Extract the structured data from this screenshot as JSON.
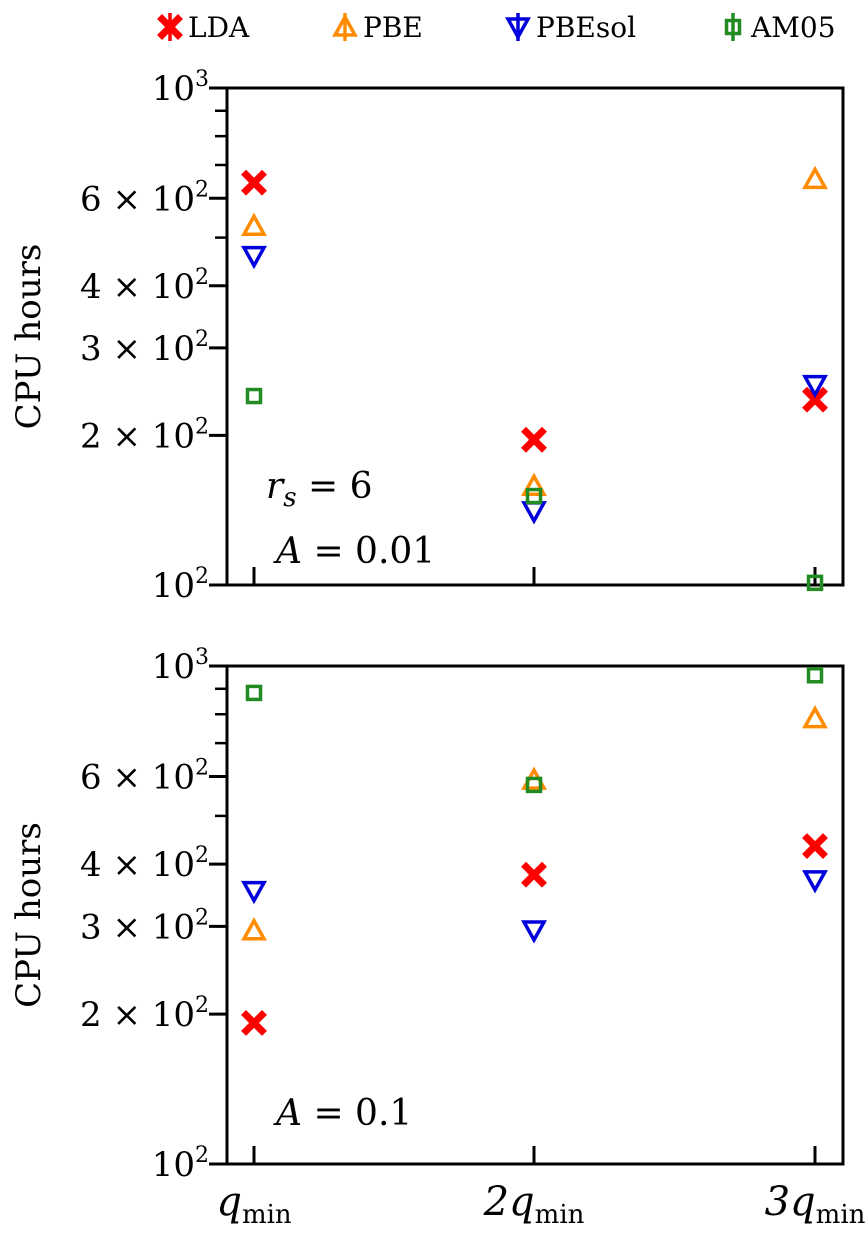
{
  "legend": [
    {
      "name": "LDA",
      "color": "#ff0000",
      "marker": "x-filled"
    },
    {
      "name": "PBE",
      "color": "#ff8c00",
      "marker": "triangle-up"
    },
    {
      "name": "PBEsol",
      "color": "#0000dd",
      "marker": "triangle-down"
    },
    {
      "name": "AM05",
      "color": "#228b22",
      "marker": "square"
    }
  ],
  "x_tick_labels": [
    {
      "main": "q",
      "sub": "min"
    },
    {
      "main": "2q",
      "sub": "min"
    },
    {
      "main": "3q",
      "sub": "min"
    }
  ],
  "chart_data": [
    {
      "type": "scatter",
      "ylabel": "CPU hours",
      "yscale": "log",
      "ylim": [
        100,
        1000
      ],
      "yticks": [
        {
          "value": 100,
          "label": "10",
          "sup": "2"
        },
        {
          "value": 200,
          "label": "2 × 10",
          "sup": "2"
        },
        {
          "value": 300,
          "label": "3 × 10",
          "sup": "2"
        },
        {
          "value": 400,
          "label": "4 × 10",
          "sup": "2"
        },
        {
          "value": 600,
          "label": "6 × 10",
          "sup": "2"
        },
        {
          "value": 1000,
          "label": "10",
          "sup": "3"
        }
      ],
      "categories": [
        "q_min",
        "2q_min",
        "3q_min"
      ],
      "annotations": [
        {
          "var": "r",
          "sub": "s",
          "text": " = 6"
        },
        {
          "var": "A",
          "sub": "",
          "text": " = 0.01"
        }
      ],
      "series": [
        {
          "name": "LDA",
          "values": [
            645,
            196,
            236
          ]
        },
        {
          "name": "PBE",
          "values": [
            527,
            158,
            655
          ]
        },
        {
          "name": "PBEsol",
          "values": [
            460,
            141,
            253
          ]
        },
        {
          "name": "AM05",
          "values": [
            240,
            151,
            101
          ]
        }
      ]
    },
    {
      "type": "scatter",
      "ylabel": "CPU hours",
      "yscale": "log",
      "ylim": [
        100,
        1000
      ],
      "yticks": [
        {
          "value": 100,
          "label": "10",
          "sup": "2"
        },
        {
          "value": 200,
          "label": "2 × 10",
          "sup": "2"
        },
        {
          "value": 300,
          "label": "3 × 10",
          "sup": "2"
        },
        {
          "value": 400,
          "label": "4 × 10",
          "sup": "2"
        },
        {
          "value": 600,
          "label": "6 × 10",
          "sup": "2"
        },
        {
          "value": 1000,
          "label": "10",
          "sup": "3"
        }
      ],
      "categories": [
        "q_min",
        "2q_min",
        "3q_min"
      ],
      "annotations": [
        {
          "var": "A",
          "sub": "",
          "text": " = 0.1"
        }
      ],
      "series": [
        {
          "name": "LDA",
          "values": [
            192,
            381,
            435
          ]
        },
        {
          "name": "PBE",
          "values": [
            294,
            590,
            784
          ]
        },
        {
          "name": "PBEsol",
          "values": [
            354,
            295,
            372
          ]
        },
        {
          "name": "AM05",
          "values": [
            883,
            577,
            958
          ]
        }
      ]
    }
  ]
}
